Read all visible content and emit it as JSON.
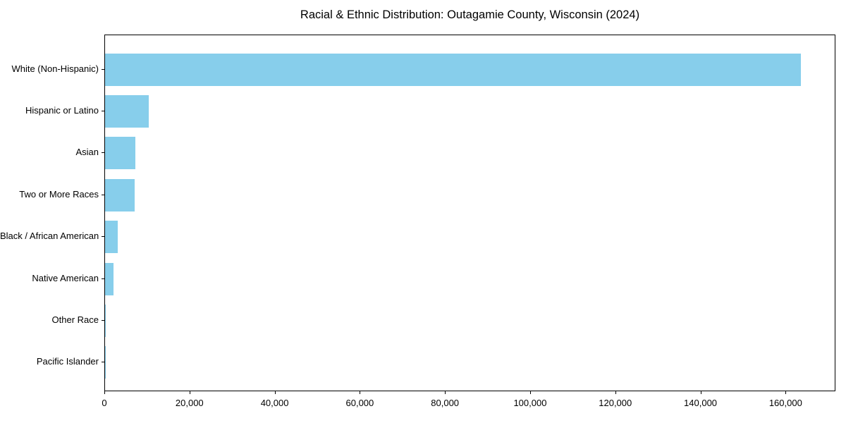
{
  "title": "Racial & Ethnic Distribution: Outagamie County, Wisconsin (2024)",
  "colors": {
    "bar": "#87CEEB",
    "spine": "#000000",
    "text": "#000000",
    "background": "#ffffff"
  },
  "chart_data": {
    "type": "bar",
    "orientation": "horizontal",
    "title": "Racial & Ethnic Distribution: Outagamie County, Wisconsin (2024)",
    "categories": [
      "White (Non-Hispanic)",
      "Hispanic or Latino",
      "Asian",
      "Two or More Races",
      "Black / African American",
      "Native American",
      "Other Race",
      "Pacific Islander"
    ],
    "values": [
      163500,
      10200,
      7200,
      6900,
      2950,
      2000,
      200,
      60
    ],
    "xlabel": "",
    "ylabel": "",
    "xlim": [
      0,
      171700
    ],
    "x_ticks": [
      0,
      20000,
      40000,
      60000,
      80000,
      100000,
      120000,
      140000,
      160000
    ],
    "x_tick_labels": [
      "0",
      "20,000",
      "40,000",
      "60,000",
      "80,000",
      "100,000",
      "120,000",
      "140,000",
      "160,000"
    ],
    "bar_color": "#87CEEB",
    "grid": false,
    "legend": null
  }
}
